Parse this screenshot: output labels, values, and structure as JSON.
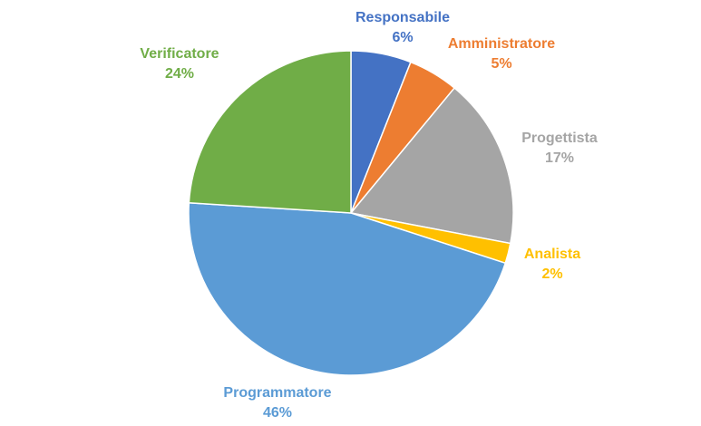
{
  "chart_data": {
    "type": "pie",
    "title": "",
    "start_angle_deg": 0,
    "direction": "clockwise",
    "slices": [
      {
        "label": "Responsabile",
        "value": 6,
        "percent_label": "6%",
        "color": "#4472C4"
      },
      {
        "label": "Amministratore",
        "value": 5,
        "percent_label": "5%",
        "color": "#ED7D31"
      },
      {
        "label": "Progettista",
        "value": 17,
        "percent_label": "17%",
        "color": "#A5A5A5"
      },
      {
        "label": "Analista",
        "value": 2,
        "percent_label": "2%",
        "color": "#FFC000"
      },
      {
        "label": "Programmatore",
        "value": 46,
        "percent_label": "46%",
        "color": "#5B9BD5"
      },
      {
        "label": "Verificatore",
        "value": 24,
        "percent_label": "24%",
        "color": "#70AD47"
      }
    ],
    "legend": "none"
  }
}
